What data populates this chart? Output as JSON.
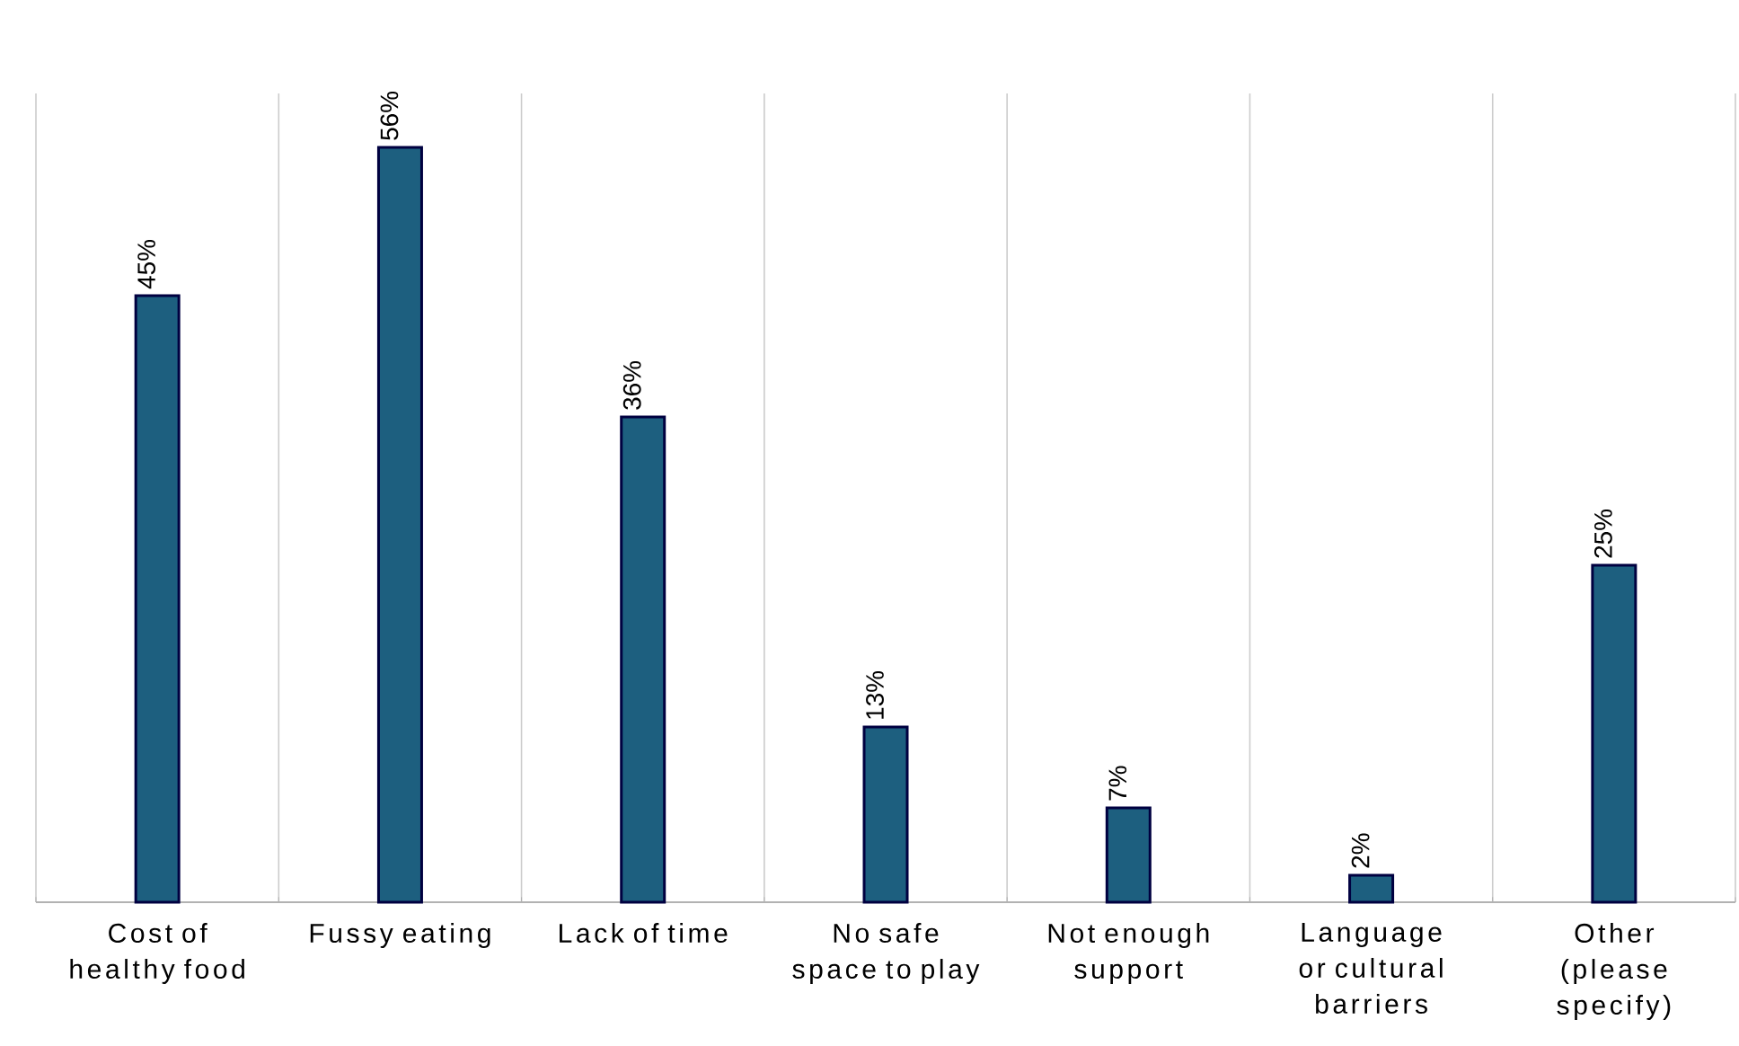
{
  "chart_data": {
    "type": "bar",
    "categories": [
      "Cost of healthy food",
      "Fussy eating",
      "Lack of time",
      "No safe space to play",
      "Not enough support",
      "Language or cultural barriers",
      "Other (please specify)"
    ],
    "values": [
      45,
      56,
      36,
      13,
      7,
      2,
      25
    ],
    "value_labels": [
      "45%",
      "56%",
      "36%",
      "13%",
      "7%",
      "2%",
      "25%"
    ],
    "color": "#1d5f7f",
    "ylim": [
      0,
      60
    ],
    "grid": "x",
    "tick_labels": "x"
  }
}
